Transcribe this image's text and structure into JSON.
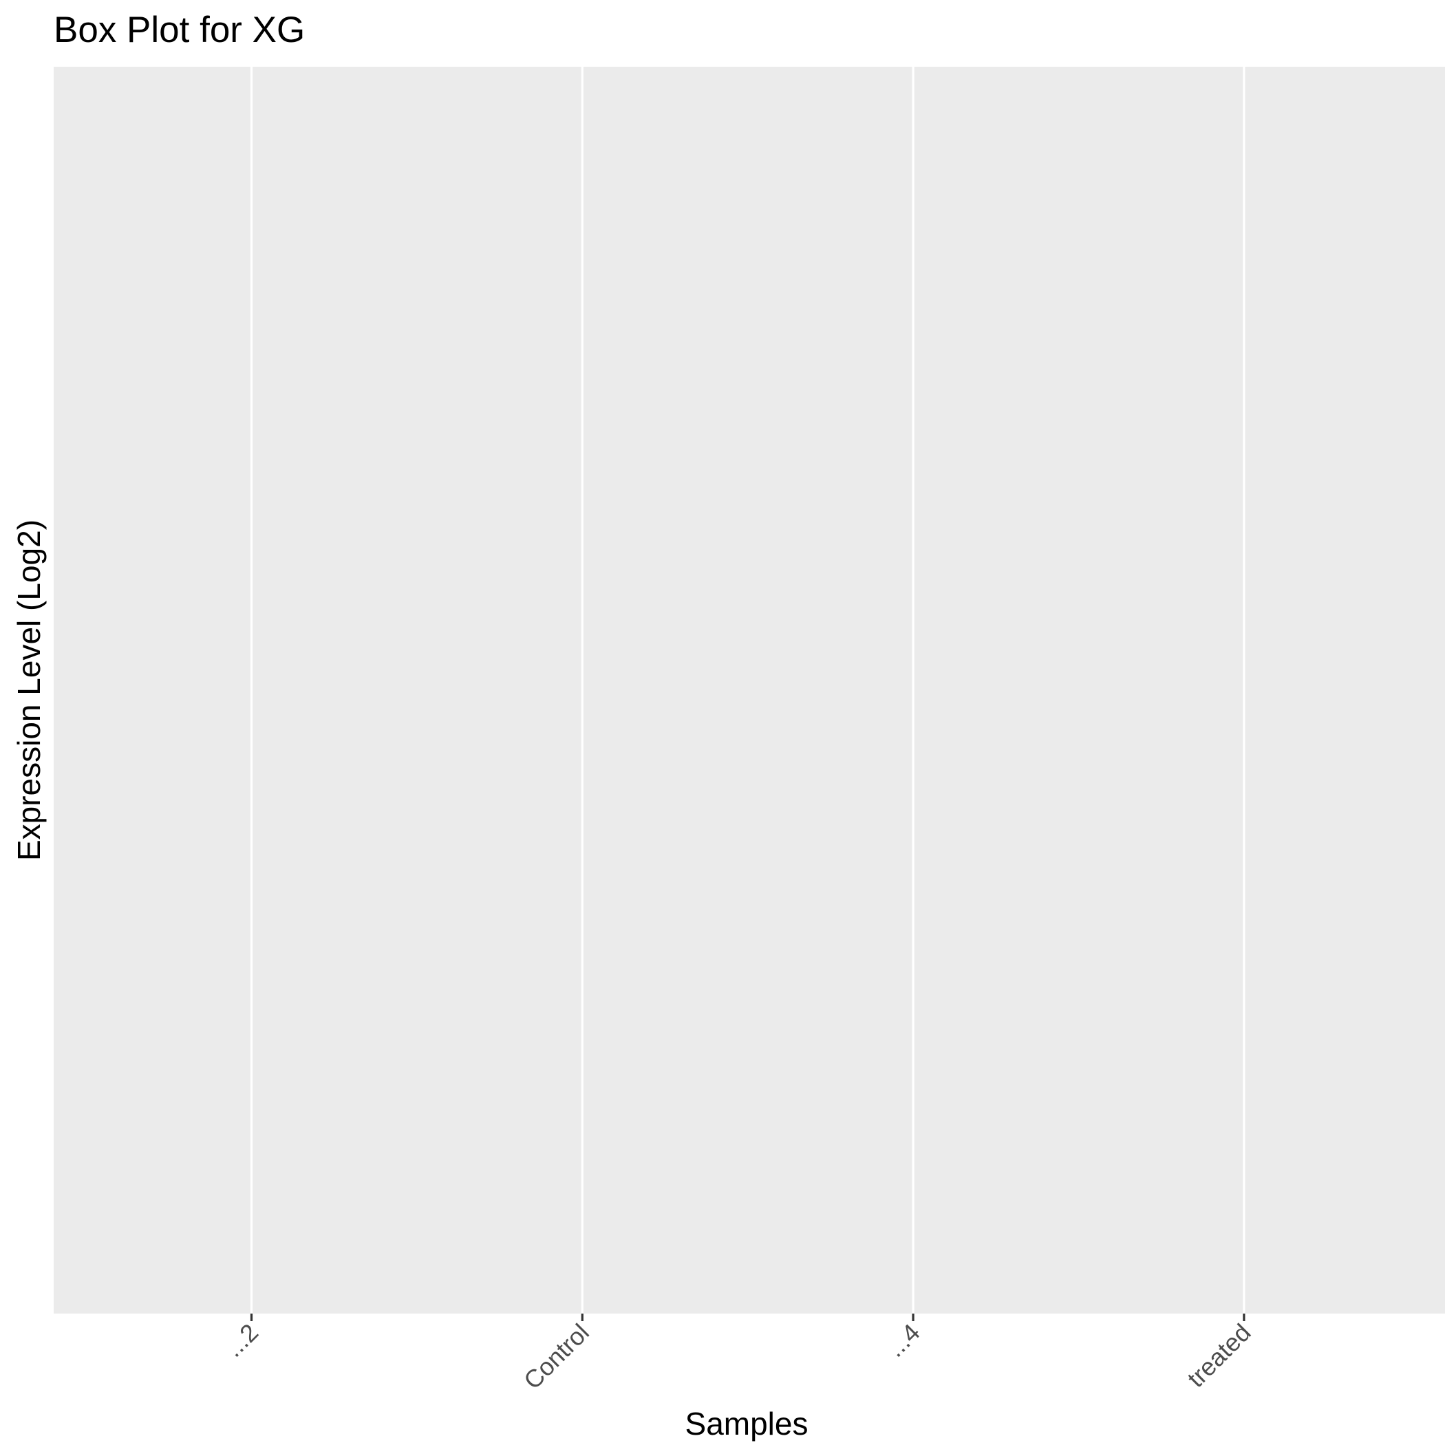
{
  "chart_data": {
    "type": "box",
    "title": "Box Plot for XG",
    "xlabel": "Samples",
    "ylabel": "Expression Level (Log2)",
    "categories": [
      "...2",
      "Control",
      "...4",
      "treated"
    ],
    "series": [],
    "grid": true,
    "legend": "none"
  },
  "colors": {
    "panel_background": "#ebebeb",
    "gridline": "#ffffff",
    "tick_label": "#4d4d4d",
    "tick_mark": "#333333",
    "text": "#000000"
  }
}
